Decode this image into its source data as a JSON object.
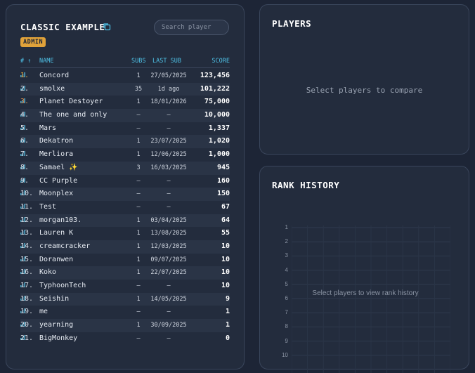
{
  "leaderboard": {
    "title": "CLASSIC EXAMPLE",
    "badge": "ADMIN",
    "search_placeholder": "Search player",
    "headers": {
      "rank": "#",
      "name": "NAME",
      "subs": "SUBS",
      "last_sub": "LAST SUB",
      "score": "SCORE"
    },
    "rows": [
      {
        "rank": "1.",
        "name": "Concord",
        "subs": "1",
        "last": "27/05/2025",
        "score": "123,456"
      },
      {
        "rank": "2.",
        "name": "smolxe",
        "subs": "35",
        "last": "1d ago",
        "score": "101,222"
      },
      {
        "rank": "3.",
        "name": "Planet Destoyer",
        "subs": "1",
        "last": "18/01/2026",
        "score": "75,000"
      },
      {
        "rank": "4.",
        "name": "The one and only",
        "subs": "–",
        "last": "–",
        "score": "10,000"
      },
      {
        "rank": "5.",
        "name": "Mars",
        "subs": "–",
        "last": "–",
        "score": "1,337"
      },
      {
        "rank": "6.",
        "name": "Dekatron",
        "subs": "1",
        "last": "23/07/2025",
        "score": "1,020"
      },
      {
        "rank": "7.",
        "name": "Merliora",
        "subs": "1",
        "last": "12/06/2025",
        "score": "1,000"
      },
      {
        "rank": "8.",
        "name": "Samael ✨",
        "subs": "3",
        "last": "16/03/2025",
        "score": "945"
      },
      {
        "rank": "9.",
        "name": "CC Purple",
        "subs": "–",
        "last": "–",
        "score": "160"
      },
      {
        "rank": "10.",
        "name": "Moonplex",
        "subs": "–",
        "last": "–",
        "score": "150"
      },
      {
        "rank": "11.",
        "name": "Test",
        "subs": "–",
        "last": "–",
        "score": "67"
      },
      {
        "rank": "12.",
        "name": "morgan103.",
        "subs": "1",
        "last": "03/04/2025",
        "score": "64"
      },
      {
        "rank": "13.",
        "name": "Lauren K",
        "subs": "1",
        "last": "13/08/2025",
        "score": "55"
      },
      {
        "rank": "14.",
        "name": "creamcracker",
        "subs": "1",
        "last": "12/03/2025",
        "score": "10"
      },
      {
        "rank": "15.",
        "name": "Doranwen",
        "subs": "1",
        "last": "09/07/2025",
        "score": "10"
      },
      {
        "rank": "16.",
        "name": "Koko",
        "subs": "1",
        "last": "22/07/2025",
        "score": "10"
      },
      {
        "rank": "17.",
        "name": "TyphoonTech",
        "subs": "–",
        "last": "–",
        "score": "10"
      },
      {
        "rank": "18.",
        "name": "Seishin",
        "subs": "1",
        "last": "14/05/2025",
        "score": "9"
      },
      {
        "rank": "19.",
        "name": "me",
        "subs": "–",
        "last": "–",
        "score": "1"
      },
      {
        "rank": "20.",
        "name": "yearning",
        "subs": "1",
        "last": "30/09/2025",
        "score": "1"
      },
      {
        "rank": "21.",
        "name": "BigMonkey",
        "subs": "–",
        "last": "–",
        "score": "0"
      }
    ]
  },
  "players": {
    "title": "PLAYERS",
    "placeholder": "Select players to compare"
  },
  "rank_history": {
    "title": "RANK HISTORY",
    "placeholder": "Select players to view rank history",
    "y_ticks": [
      "1",
      "2",
      "3",
      "4",
      "5",
      "6",
      "7",
      "8",
      "9",
      "10"
    ]
  },
  "colors": {
    "accent": "#4fc3e8",
    "gold": "#e0a23a",
    "panel": "#232c3d"
  }
}
